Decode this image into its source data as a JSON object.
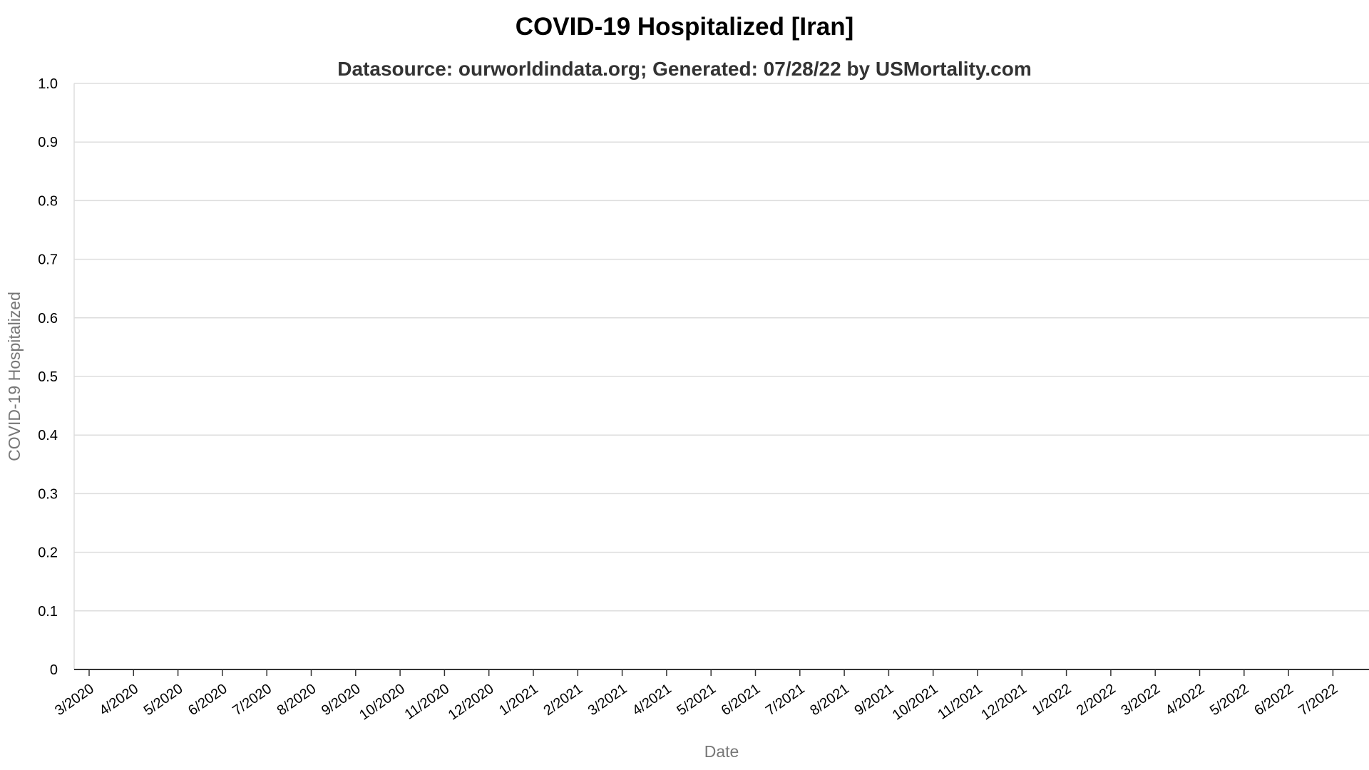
{
  "chart_data": {
    "type": "line",
    "title": "COVID-19 Hospitalized [Iran]",
    "subtitle": "Datasource: ourworldindata.org; Generated: 07/28/22 by USMortality.com",
    "xlabel": "Date",
    "ylabel": "COVID-19 Hospitalized",
    "ylim": [
      0,
      1
    ],
    "y_ticks": [
      "0",
      "0.1",
      "0.2",
      "0.3",
      "0.4",
      "0.5",
      "0.6",
      "0.7",
      "0.8",
      "0.9",
      "1.0"
    ],
    "x_ticks": [
      "3/2020",
      "4/2020",
      "5/2020",
      "6/2020",
      "7/2020",
      "8/2020",
      "9/2020",
      "10/2020",
      "11/2020",
      "12/2020",
      "1/2021",
      "2/2021",
      "3/2021",
      "4/2021",
      "5/2021",
      "6/2021",
      "7/2021",
      "8/2021",
      "9/2021",
      "10/2021",
      "11/2021",
      "12/2021",
      "1/2022",
      "2/2022",
      "3/2022",
      "4/2022",
      "5/2022",
      "6/2022",
      "7/2022"
    ],
    "grid": true,
    "series": []
  },
  "colors": {
    "grid": "#dddddd",
    "axis": "#333333",
    "axis_title": "#777777",
    "subtitle": "#333333"
  }
}
